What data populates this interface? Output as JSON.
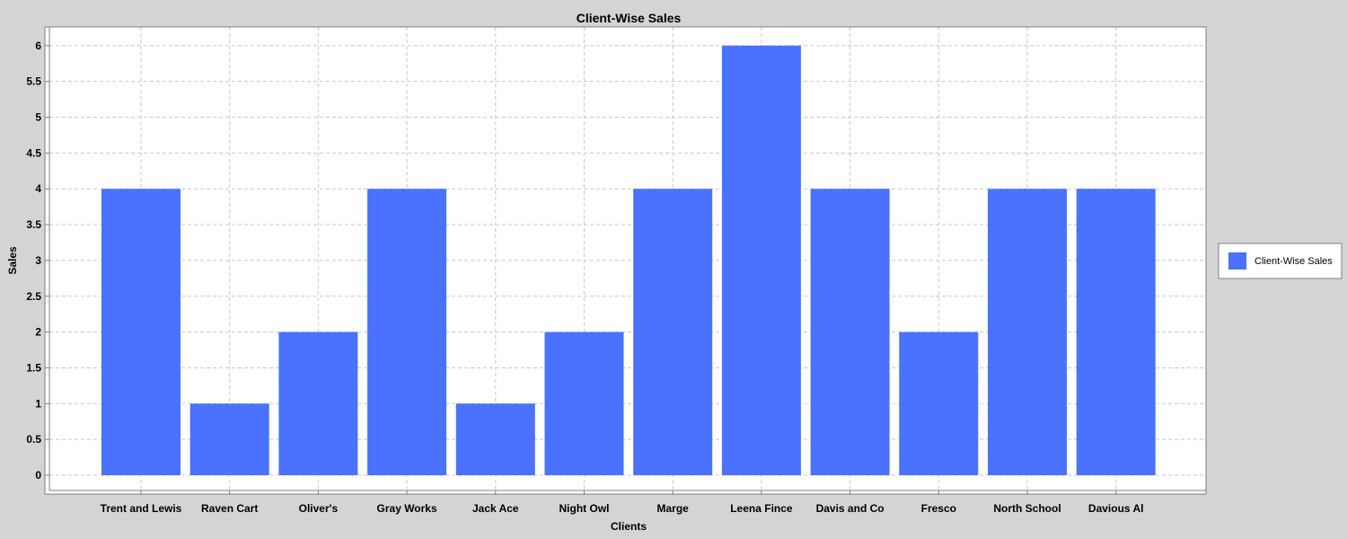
{
  "chart_data": {
    "type": "bar",
    "title": "Client-Wise Sales",
    "xlabel": "Clients",
    "ylabel": "Sales",
    "categories": [
      "Trent and Lewis",
      "Raven Cart",
      "Oliver's",
      "Gray Works",
      "Jack Ace",
      "Night Owl",
      "Marge",
      "Leena Fince",
      "Davis and Co",
      "Fresco",
      "North School",
      "Davious Al"
    ],
    "series": [
      {
        "name": "Client-Wise Sales",
        "values": [
          4,
          1,
          2,
          4,
          1,
          2,
          4,
          6,
          4,
          2,
          4,
          4
        ]
      }
    ],
    "ylim": [
      0,
      6.25
    ],
    "yticks": [
      "0",
      "0.5",
      "1",
      "1.5",
      "2",
      "2.5",
      "3",
      "3.5",
      "4",
      "4.5",
      "5",
      "5.5",
      "6"
    ],
    "grid": true,
    "legend_position": "right",
    "colors": {
      "bar": "#4a72fe",
      "plot_bg": "#ffffff",
      "page_bg": "#d4d4d4",
      "grid": "#c8c8c8"
    }
  }
}
